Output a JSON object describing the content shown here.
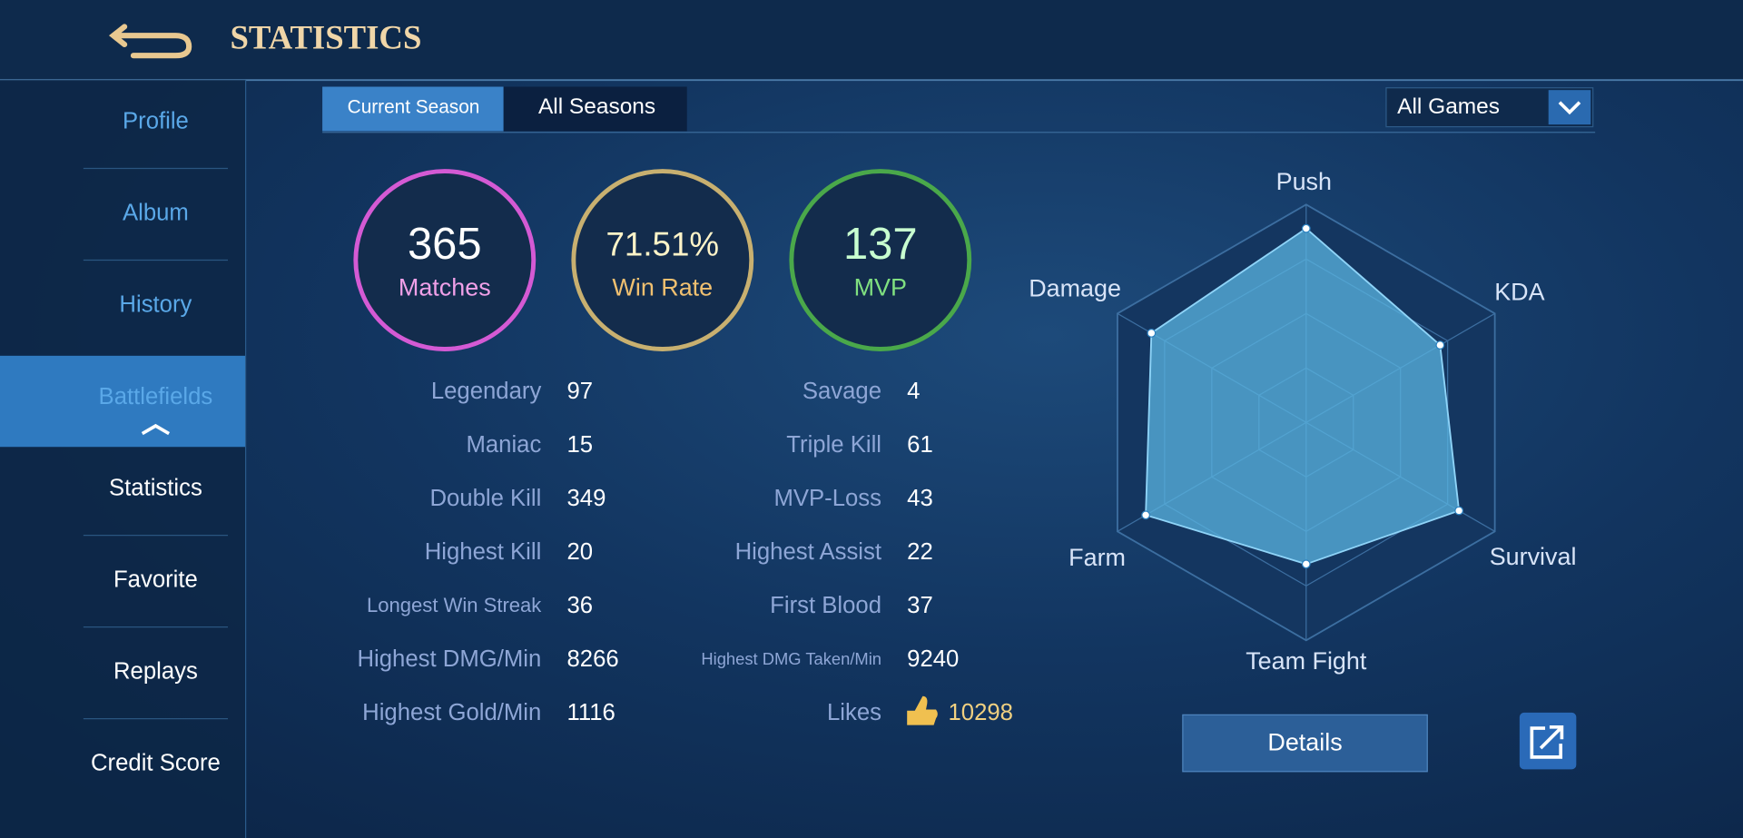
{
  "header": {
    "title": "STATISTICS"
  },
  "sidebar": {
    "items": [
      "Profile",
      "Album",
      "History",
      "Battlefields",
      "Statistics",
      "Favorite",
      "Replays",
      "Credit Score"
    ]
  },
  "tabs": [
    "Current Season",
    "All Seasons"
  ],
  "filter": "All Games",
  "summary": [
    {
      "value": 365,
      "label": "Matches"
    },
    {
      "value": "71.51%",
      "label": "Win Rate"
    },
    {
      "value": 137,
      "label": "MVP"
    }
  ],
  "stats": {
    "left": [
      {
        "label": "Legendary",
        "value": 97
      },
      {
        "label": "Maniac",
        "value": 15
      },
      {
        "label": "Double Kill",
        "value": 349
      },
      {
        "label": "Highest Kill",
        "value": 20
      },
      {
        "label": "Longest Win Streak",
        "value": 36
      },
      {
        "label": "Highest DMG/Min",
        "value": 8266
      },
      {
        "label": "Highest Gold/Min",
        "value": 1116
      }
    ],
    "right": [
      {
        "label": "Savage",
        "value": 4
      },
      {
        "label": "Triple Kill",
        "value": 61
      },
      {
        "label": "MVP-Loss",
        "value": 43
      },
      {
        "label": "Highest Assist",
        "value": 22
      },
      {
        "label": "First Blood",
        "value": 37
      },
      {
        "label": "Highest DMG Taken/Min",
        "value": 9240
      },
      {
        "label": "Likes",
        "value": 10298
      }
    ]
  },
  "radar": {
    "type": "radar",
    "axes": [
      "Push",
      "KDA",
      "Survival",
      "Team Fight",
      "Farm",
      "Damage"
    ],
    "values": [
      89,
      71,
      81,
      65,
      85,
      82
    ],
    "rlim": [
      0,
      100
    ],
    "color": "#5ab4e0"
  },
  "button": "Details"
}
